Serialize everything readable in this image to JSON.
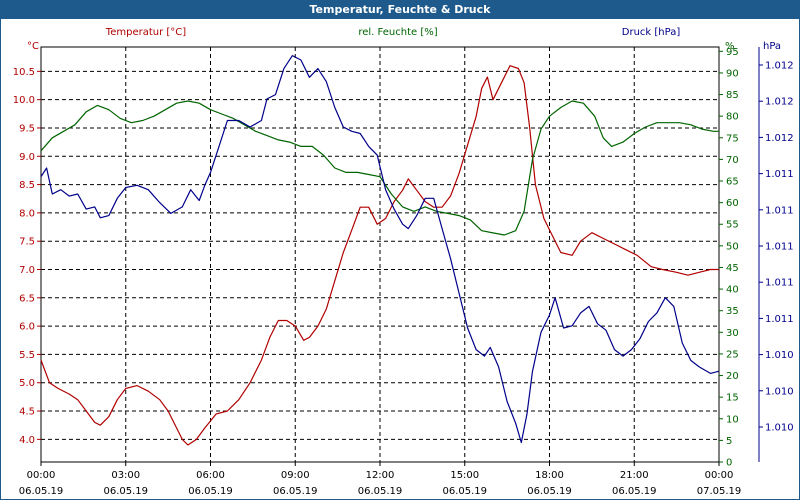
{
  "window": {
    "title": "Temperatur, Feuchte & Druck"
  },
  "chart_data": {
    "type": "line",
    "title": "Temperatur, Feuchte & Druck",
    "x_unit": "hours since 06.05.19 00:00",
    "xlim": [
      0,
      24
    ],
    "grid": true,
    "colors": {
      "temperature": "#b00000",
      "humidity": "#006400",
      "pressure": "#00008b",
      "grid": "#000000"
    },
    "x_ticks": [
      {
        "x": 0,
        "time": "00:00",
        "date": "06.05.19"
      },
      {
        "x": 3,
        "time": "03:00",
        "date": "06.05.19"
      },
      {
        "x": 6,
        "time": "06:00",
        "date": "06.05.19"
      },
      {
        "x": 9,
        "time": "09:00",
        "date": "06.05.19"
      },
      {
        "x": 12,
        "time": "12:00",
        "date": "06.05.19"
      },
      {
        "x": 15,
        "time": "15:00",
        "date": "06.05.19"
      },
      {
        "x": 18,
        "time": "18:00",
        "date": "06.05.19"
      },
      {
        "x": 21,
        "time": "21:00",
        "date": "06.05.19"
      },
      {
        "x": 24,
        "time": "00:00",
        "date": "07.05.19"
      }
    ],
    "axes": {
      "temperature": {
        "unit": "°C",
        "ylim": [
          3.6,
          10.93
        ],
        "ticks": [
          "4.0",
          "4.5",
          "5.0",
          "5.5",
          "6.0",
          "6.5",
          "7.0",
          "7.5",
          "8.0",
          "8.5",
          "9.0",
          "9.5",
          "10.0",
          "10.5"
        ]
      },
      "humidity": {
        "unit": "%",
        "ylim": [
          0,
          96
        ],
        "ticks": [
          "0",
          "5",
          "10",
          "15",
          "20",
          "25",
          "30",
          "35",
          "40",
          "45",
          "50",
          "55",
          "60",
          "65",
          "70",
          "75",
          "80",
          "85",
          "90",
          "95"
        ]
      },
      "pressure": {
        "unit": "hPa",
        "tick_labels": [
          "1.010",
          "1.010",
          "1.010",
          "1.011",
          "1.011",
          "1.011",
          "1.011",
          "1.011",
          "1.012",
          "1.012",
          "1.012"
        ]
      }
    },
    "series": [
      {
        "name": "Temperatur [°C]",
        "key": "temperature",
        "axis": "temperature",
        "points": [
          [
            0,
            5.4
          ],
          [
            0.3,
            5.0
          ],
          [
            0.6,
            4.9
          ],
          [
            1.0,
            4.8
          ],
          [
            1.3,
            4.7
          ],
          [
            1.6,
            4.5
          ],
          [
            1.9,
            4.3
          ],
          [
            2.1,
            4.25
          ],
          [
            2.4,
            4.4
          ],
          [
            2.7,
            4.7
          ],
          [
            3.0,
            4.9
          ],
          [
            3.4,
            4.95
          ],
          [
            3.8,
            4.85
          ],
          [
            4.2,
            4.7
          ],
          [
            4.5,
            4.5
          ],
          [
            4.8,
            4.2
          ],
          [
            5.0,
            4.0
          ],
          [
            5.2,
            3.9
          ],
          [
            5.5,
            4.0
          ],
          [
            5.8,
            4.2
          ],
          [
            6.2,
            4.45
          ],
          [
            6.6,
            4.5
          ],
          [
            7.0,
            4.7
          ],
          [
            7.4,
            5.0
          ],
          [
            7.8,
            5.4
          ],
          [
            8.1,
            5.8
          ],
          [
            8.4,
            6.1
          ],
          [
            8.7,
            6.1
          ],
          [
            9.0,
            6.0
          ],
          [
            9.3,
            5.75
          ],
          [
            9.5,
            5.8
          ],
          [
            9.8,
            6.0
          ],
          [
            10.1,
            6.3
          ],
          [
            10.4,
            6.8
          ],
          [
            10.7,
            7.3
          ],
          [
            11.0,
            7.7
          ],
          [
            11.3,
            8.1
          ],
          [
            11.6,
            8.1
          ],
          [
            11.9,
            7.8
          ],
          [
            12.2,
            7.9
          ],
          [
            12.5,
            8.2
          ],
          [
            12.8,
            8.4
          ],
          [
            13.0,
            8.6
          ],
          [
            13.3,
            8.4
          ],
          [
            13.6,
            8.2
          ],
          [
            13.9,
            8.1
          ],
          [
            14.2,
            8.1
          ],
          [
            14.5,
            8.3
          ],
          [
            14.8,
            8.7
          ],
          [
            15.1,
            9.2
          ],
          [
            15.4,
            9.7
          ],
          [
            15.6,
            10.2
          ],
          [
            15.8,
            10.4
          ],
          [
            16.0,
            10.0
          ],
          [
            16.3,
            10.3
          ],
          [
            16.6,
            10.6
          ],
          [
            16.9,
            10.55
          ],
          [
            17.1,
            10.3
          ],
          [
            17.3,
            9.5
          ],
          [
            17.5,
            8.5
          ],
          [
            17.8,
            7.9
          ],
          [
            18.1,
            7.6
          ],
          [
            18.4,
            7.3
          ],
          [
            18.8,
            7.25
          ],
          [
            19.1,
            7.5
          ],
          [
            19.5,
            7.65
          ],
          [
            19.9,
            7.55
          ],
          [
            20.3,
            7.45
          ],
          [
            20.7,
            7.35
          ],
          [
            21.1,
            7.25
          ],
          [
            21.6,
            7.05
          ],
          [
            22.0,
            7.0
          ],
          [
            22.5,
            6.95
          ],
          [
            22.9,
            6.9
          ],
          [
            23.3,
            6.95
          ],
          [
            23.7,
            7.0
          ],
          [
            24.0,
            7.0
          ]
        ]
      },
      {
        "name": "rel. Feuchte [%]",
        "key": "humidity",
        "axis": "humidity",
        "points": [
          [
            0,
            72
          ],
          [
            0.4,
            75
          ],
          [
            0.8,
            76.5
          ],
          [
            1.2,
            78
          ],
          [
            1.6,
            81
          ],
          [
            2.0,
            82.5
          ],
          [
            2.4,
            81.5
          ],
          [
            2.8,
            79.5
          ],
          [
            3.2,
            78.5
          ],
          [
            3.6,
            79
          ],
          [
            4.0,
            80
          ],
          [
            4.4,
            81.5
          ],
          [
            4.8,
            83
          ],
          [
            5.2,
            83.5
          ],
          [
            5.6,
            83
          ],
          [
            6.0,
            81.5
          ],
          [
            6.4,
            80.5
          ],
          [
            6.8,
            79.5
          ],
          [
            7.2,
            78
          ],
          [
            7.6,
            76.5
          ],
          [
            8.0,
            75.5
          ],
          [
            8.4,
            74.5
          ],
          [
            8.8,
            74
          ],
          [
            9.2,
            73
          ],
          [
            9.6,
            73
          ],
          [
            10.0,
            71
          ],
          [
            10.4,
            68
          ],
          [
            10.8,
            67
          ],
          [
            11.2,
            67
          ],
          [
            11.6,
            66.5
          ],
          [
            12.0,
            66
          ],
          [
            12.4,
            62
          ],
          [
            12.8,
            59
          ],
          [
            13.2,
            58
          ],
          [
            13.6,
            59
          ],
          [
            14.0,
            58
          ],
          [
            14.4,
            57.5
          ],
          [
            14.8,
            57
          ],
          [
            15.2,
            56
          ],
          [
            15.6,
            53.5
          ],
          [
            16.0,
            53
          ],
          [
            16.4,
            52.5
          ],
          [
            16.8,
            53.5
          ],
          [
            17.1,
            58
          ],
          [
            17.4,
            70
          ],
          [
            17.7,
            77
          ],
          [
            18.0,
            80
          ],
          [
            18.4,
            82
          ],
          [
            18.8,
            83.5
          ],
          [
            19.2,
            83
          ],
          [
            19.6,
            80
          ],
          [
            19.9,
            75
          ],
          [
            20.2,
            73
          ],
          [
            20.6,
            74
          ],
          [
            21.0,
            76
          ],
          [
            21.4,
            77.5
          ],
          [
            21.8,
            78.5
          ],
          [
            22.2,
            78.5
          ],
          [
            22.6,
            78.5
          ],
          [
            23.0,
            78
          ],
          [
            23.4,
            77
          ],
          [
            23.8,
            76.5
          ],
          [
            24.0,
            76.5
          ]
        ]
      },
      {
        "name": "Druck [hPa]",
        "key": "pressure",
        "axis": "humidity",
        "points": [
          [
            0,
            66
          ],
          [
            0.2,
            68
          ],
          [
            0.4,
            62
          ],
          [
            0.7,
            63
          ],
          [
            1.0,
            61.5
          ],
          [
            1.3,
            62
          ],
          [
            1.6,
            58.5
          ],
          [
            1.9,
            59
          ],
          [
            2.1,
            56.5
          ],
          [
            2.4,
            57
          ],
          [
            2.7,
            61
          ],
          [
            3.0,
            63.5
          ],
          [
            3.4,
            64
          ],
          [
            3.8,
            63
          ],
          [
            4.2,
            60
          ],
          [
            4.6,
            57.5
          ],
          [
            5.0,
            59
          ],
          [
            5.3,
            63
          ],
          [
            5.6,
            60.5
          ],
          [
            5.8,
            64
          ],
          [
            6.0,
            67
          ],
          [
            6.3,
            73
          ],
          [
            6.6,
            79
          ],
          [
            7.0,
            79
          ],
          [
            7.4,
            77.5
          ],
          [
            7.8,
            79
          ],
          [
            8.0,
            84
          ],
          [
            8.3,
            85
          ],
          [
            8.6,
            91
          ],
          [
            8.9,
            94
          ],
          [
            9.2,
            93
          ],
          [
            9.5,
            89
          ],
          [
            9.8,
            91
          ],
          [
            10.1,
            88
          ],
          [
            10.4,
            82
          ],
          [
            10.7,
            77.5
          ],
          [
            11.0,
            76.5
          ],
          [
            11.3,
            76
          ],
          [
            11.6,
            73
          ],
          [
            11.9,
            71
          ],
          [
            12.2,
            63
          ],
          [
            12.5,
            58.5
          ],
          [
            12.8,
            55
          ],
          [
            13.0,
            54
          ],
          [
            13.3,
            57
          ],
          [
            13.6,
            61
          ],
          [
            13.9,
            61
          ],
          [
            14.2,
            54
          ],
          [
            14.5,
            47
          ],
          [
            14.8,
            39
          ],
          [
            15.1,
            31
          ],
          [
            15.4,
            26
          ],
          [
            15.7,
            24.5
          ],
          [
            15.9,
            26.5
          ],
          [
            16.2,
            22
          ],
          [
            16.5,
            14
          ],
          [
            16.8,
            9
          ],
          [
            17.0,
            4.5
          ],
          [
            17.2,
            11
          ],
          [
            17.4,
            21
          ],
          [
            17.7,
            30
          ],
          [
            18.0,
            34
          ],
          [
            18.2,
            38
          ],
          [
            18.5,
            31
          ],
          [
            18.8,
            31.5
          ],
          [
            19.1,
            34.5
          ],
          [
            19.4,
            36
          ],
          [
            19.7,
            32
          ],
          [
            20.0,
            30.5
          ],
          [
            20.3,
            26
          ],
          [
            20.6,
            24.5
          ],
          [
            20.9,
            26
          ],
          [
            21.2,
            28.5
          ],
          [
            21.5,
            32.5
          ],
          [
            21.8,
            34.5
          ],
          [
            22.1,
            38
          ],
          [
            22.4,
            36
          ],
          [
            22.7,
            27.5
          ],
          [
            23.0,
            23.5
          ],
          [
            23.3,
            22
          ],
          [
            23.7,
            20.5
          ],
          [
            24.0,
            21
          ]
        ]
      }
    ],
    "legend": [
      {
        "label": "Temperatur [°C]",
        "color": "#b00000"
      },
      {
        "label": "rel. Feuchte [%]",
        "color": "#006400"
      },
      {
        "label": "Druck [hPa]",
        "color": "#00008b"
      }
    ]
  }
}
